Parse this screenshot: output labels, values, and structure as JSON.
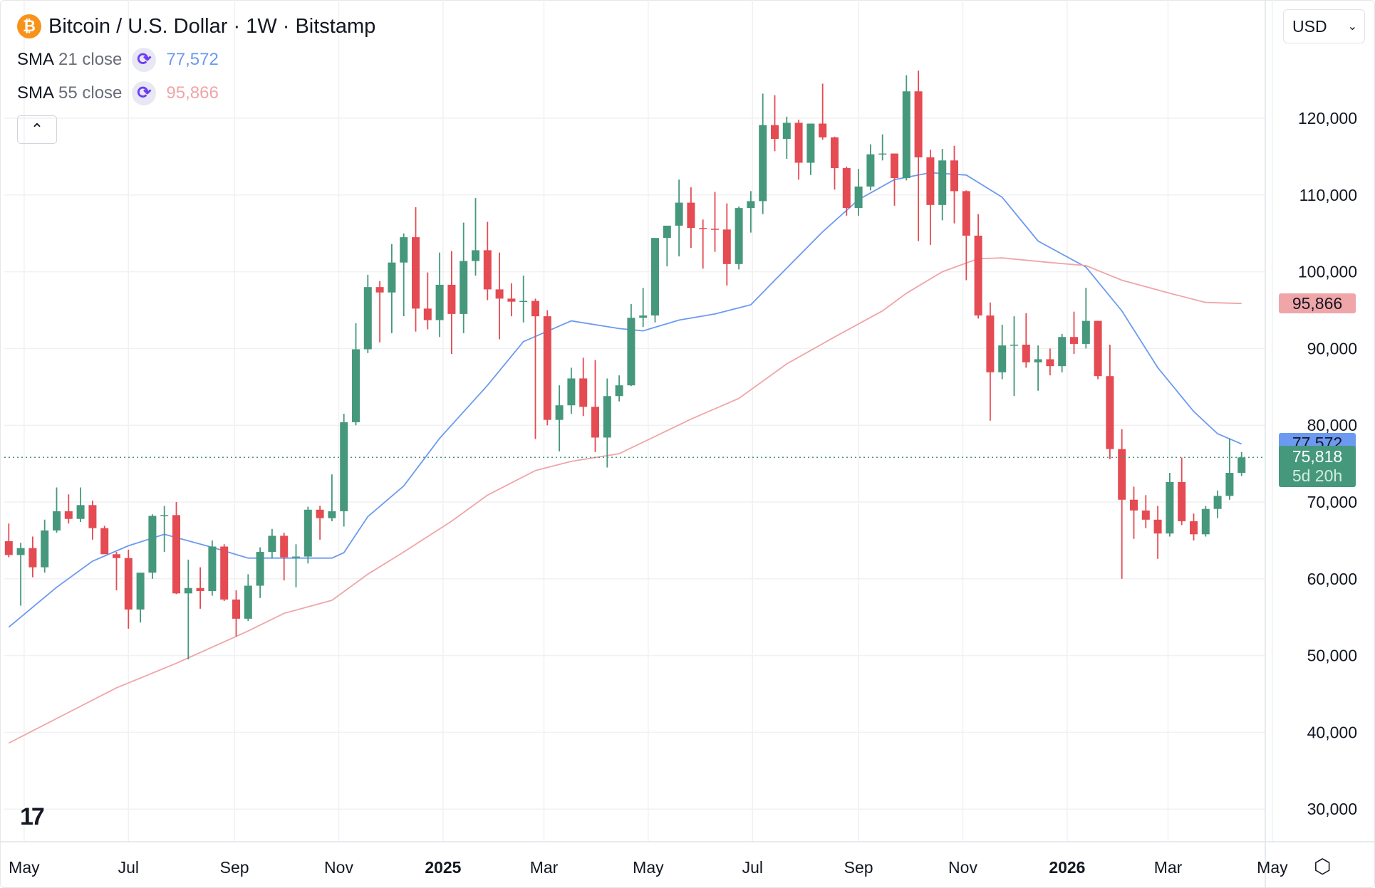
{
  "header": {
    "title": "Bitcoin / U.S. Dollar · 1W · Bitstamp",
    "coin_icon": "bitcoin-icon",
    "currency": "USD"
  },
  "indicators": [
    {
      "name": "SMA",
      "params": "21 close",
      "value": "77,572",
      "color": "#6b9af0"
    },
    {
      "name": "SMA",
      "params": "55 close",
      "value": "95,866",
      "color": "#f0a5a8"
    }
  ],
  "price_tags": {
    "sma21": "77,572",
    "sma55": "95,866",
    "last": "75,818",
    "countdown": "5d 20h"
  },
  "colors": {
    "up": "#46987c",
    "down": "#e44b52",
    "sma21": "#6b9af0",
    "sma55": "#f0a5a8",
    "grid": "#f0f1f3"
  },
  "chart_data": {
    "type": "candlestick",
    "interval": "1W",
    "ylim": [
      25000,
      128000
    ],
    "yticks": [
      30000,
      40000,
      50000,
      60000,
      70000,
      80000,
      90000,
      100000,
      110000,
      120000
    ],
    "ytick_labels": [
      "30,000",
      "40,000",
      "50,000",
      "60,000",
      "70,000",
      "80,000",
      "90,000",
      "100,000",
      "110,000",
      "120,000"
    ],
    "xticks": [
      {
        "date": "2024-05-01",
        "label": "May"
      },
      {
        "date": "2024-07-01",
        "label": "Jul"
      },
      {
        "date": "2024-09-01",
        "label": "Sep"
      },
      {
        "date": "2024-11-01",
        "label": "Nov"
      },
      {
        "date": "2025-01-01",
        "label": "2025",
        "bold": true
      },
      {
        "date": "2025-03-01",
        "label": "Mar"
      },
      {
        "date": "2025-05-01",
        "label": "May"
      },
      {
        "date": "2025-07-01",
        "label": "Jul"
      },
      {
        "date": "2025-09-01",
        "label": "Sep"
      },
      {
        "date": "2025-11-01",
        "label": "Nov"
      },
      {
        "date": "2026-01-01",
        "label": "2026",
        "bold": true
      },
      {
        "date": "2026-03-01",
        "label": "Mar"
      },
      {
        "date": "2026-05-01",
        "label": "May"
      }
    ],
    "start": "2024-04-22",
    "last_price": 75818,
    "ohlc": [
      [
        64.9,
        67.2,
        62.8,
        63.1
      ],
      [
        63.1,
        64.7,
        56.5,
        64.0
      ],
      [
        64.0,
        65.5,
        60.2,
        61.5
      ],
      [
        61.5,
        67.7,
        60.8,
        66.3
      ],
      [
        66.3,
        71.9,
        66.0,
        68.8
      ],
      [
        68.8,
        71.0,
        67.2,
        67.8
      ],
      [
        67.8,
        71.9,
        67.4,
        69.6
      ],
      [
        69.6,
        70.2,
        65.1,
        66.6
      ],
      [
        66.6,
        66.9,
        63.4,
        63.2
      ],
      [
        63.2,
        63.5,
        58.5,
        62.7
      ],
      [
        62.7,
        63.8,
        53.5,
        56.0
      ],
      [
        56.0,
        60.0,
        54.3,
        60.8
      ],
      [
        60.8,
        68.4,
        60.0,
        68.2
      ],
      [
        68.2,
        69.5,
        63.5,
        68.3
      ],
      [
        68.3,
        70.0,
        58.0,
        58.1
      ],
      [
        58.1,
        62.5,
        49.5,
        58.8
      ],
      [
        58.8,
        61.5,
        56.1,
        58.4
      ],
      [
        58.4,
        65.0,
        57.8,
        64.2
      ],
      [
        64.2,
        64.5,
        57.1,
        57.3
      ],
      [
        57.3,
        58.5,
        52.5,
        54.8
      ],
      [
        54.8,
        60.6,
        54.5,
        59.1
      ],
      [
        59.1,
        64.1,
        57.5,
        63.5
      ],
      [
        63.5,
        66.5,
        62.7,
        65.6
      ],
      [
        65.6,
        66.0,
        59.8,
        62.8
      ],
      [
        62.8,
        64.5,
        58.9,
        62.9
      ],
      [
        62.9,
        69.4,
        62.0,
        69.0
      ],
      [
        69.0,
        69.5,
        65.1,
        67.9
      ],
      [
        67.9,
        73.6,
        67.5,
        68.8
      ],
      [
        68.8,
        81.5,
        66.8,
        80.4
      ],
      [
        80.4,
        93.3,
        80.0,
        89.9
      ],
      [
        89.9,
        99.6,
        89.4,
        98.0
      ],
      [
        98.0,
        98.8,
        90.8,
        97.3
      ],
      [
        97.3,
        103.6,
        92.0,
        101.2
      ],
      [
        101.2,
        105.0,
        94.2,
        104.5
      ],
      [
        104.5,
        108.4,
        92.2,
        95.2
      ],
      [
        95.2,
        99.9,
        92.5,
        93.7
      ],
      [
        93.7,
        102.5,
        91.5,
        98.3
      ],
      [
        98.3,
        102.7,
        89.3,
        94.5
      ],
      [
        94.5,
        106.4,
        92.0,
        101.4
      ],
      [
        101.4,
        109.6,
        99.5,
        102.8
      ],
      [
        102.8,
        106.5,
        96.3,
        97.7
      ],
      [
        97.7,
        102.5,
        91.2,
        96.5
      ],
      [
        96.5,
        98.5,
        94.2,
        96.1
      ],
      [
        96.1,
        99.5,
        93.4,
        96.2
      ],
      [
        96.2,
        96.5,
        78.2,
        94.2
      ],
      [
        94.2,
        95.0,
        80.0,
        80.7
      ],
      [
        80.7,
        85.2,
        76.6,
        82.6
      ],
      [
        82.6,
        87.5,
        81.5,
        86.1
      ],
      [
        86.1,
        88.8,
        81.2,
        82.4
      ],
      [
        82.4,
        88.5,
        76.5,
        78.4
      ],
      [
        78.4,
        86.1,
        74.5,
        83.8
      ],
      [
        83.8,
        86.5,
        83.1,
        85.2
      ],
      [
        85.2,
        95.8,
        85.1,
        94.0
      ],
      [
        94.0,
        97.9,
        92.8,
        94.3
      ],
      [
        94.3,
        104.3,
        93.4,
        104.4
      ],
      [
        104.4,
        105.8,
        100.7,
        106.0
      ],
      [
        106.0,
        112.0,
        102.0,
        109.0
      ],
      [
        109.0,
        111.0,
        103.1,
        105.7
      ],
      [
        105.7,
        106.8,
        100.4,
        105.6
      ],
      [
        105.6,
        110.4,
        102.6,
        105.5
      ],
      [
        105.5,
        108.9,
        98.2,
        101.0
      ],
      [
        101.0,
        108.5,
        100.3,
        108.3
      ],
      [
        108.3,
        110.5,
        105.1,
        109.2
      ],
      [
        109.2,
        123.2,
        107.5,
        119.1
      ],
      [
        119.1,
        123.0,
        115.7,
        117.3
      ],
      [
        117.3,
        120.2,
        114.7,
        119.4
      ],
      [
        119.4,
        119.8,
        112.0,
        114.2
      ],
      [
        114.2,
        119.3,
        112.6,
        119.3
      ],
      [
        119.3,
        124.5,
        117.2,
        117.5
      ],
      [
        117.5,
        117.6,
        110.7,
        113.5
      ],
      [
        113.5,
        113.7,
        107.3,
        108.3
      ],
      [
        108.3,
        113.4,
        107.3,
        111.1
      ],
      [
        111.1,
        116.6,
        110.6,
        115.3
      ],
      [
        115.3,
        117.9,
        114.5,
        115.4
      ],
      [
        115.4,
        115.4,
        108.6,
        112.2
      ],
      [
        112.2,
        125.6,
        111.9,
        123.5
      ],
      [
        123.5,
        126.2,
        104.0,
        114.9
      ],
      [
        114.9,
        115.9,
        103.5,
        108.7
      ],
      [
        108.7,
        116.0,
        106.7,
        114.5
      ],
      [
        114.5,
        116.4,
        106.3,
        110.5
      ],
      [
        110.5,
        110.6,
        98.9,
        104.7
      ],
      [
        104.7,
        107.5,
        93.9,
        94.3
      ],
      [
        94.3,
        96.0,
        80.6,
        86.9
      ],
      [
        86.9,
        93.1,
        86.0,
        90.4
      ],
      [
        90.4,
        94.2,
        83.8,
        90.5
      ],
      [
        90.5,
        94.6,
        87.5,
        88.2
      ],
      [
        88.2,
        90.4,
        84.5,
        88.6
      ],
      [
        88.6,
        90.0,
        86.5,
        87.7
      ],
      [
        87.7,
        91.9,
        86.9,
        91.5
      ],
      [
        91.5,
        94.8,
        89.3,
        90.6
      ],
      [
        90.6,
        97.9,
        90.0,
        93.6
      ],
      [
        93.6,
        93.6,
        86.0,
        86.4
      ],
      [
        86.4,
        90.5,
        75.6,
        76.9
      ],
      [
        76.9,
        79.5,
        60.0,
        70.3
      ],
      [
        70.3,
        72.0,
        65.2,
        68.9
      ],
      [
        68.9,
        70.9,
        66.6,
        67.7
      ],
      [
        67.7,
        69.5,
        62.6,
        65.9
      ],
      [
        65.9,
        73.8,
        65.5,
        72.6
      ],
      [
        72.6,
        75.8,
        67.0,
        67.5
      ],
      [
        67.5,
        68.5,
        65.0,
        65.8
      ],
      [
        65.8,
        69.5,
        65.5,
        69.1
      ],
      [
        69.1,
        71.5,
        67.9,
        70.8
      ],
      [
        70.8,
        78.3,
        70.3,
        73.8
      ],
      [
        73.8,
        76.5,
        73.4,
        75.818
      ]
    ],
    "ohlc_units": "thousand USD",
    "series": [
      {
        "name": "SMA 21 close",
        "points": [
          [
            "2024-04-22",
            53.7
          ],
          [
            "2024-05-20",
            58.9
          ],
          [
            "2024-06-10",
            62.3
          ],
          [
            "2024-07-01",
            64.3
          ],
          [
            "2024-07-22",
            65.8
          ],
          [
            "2024-08-19",
            64.1
          ],
          [
            "2024-09-09",
            62.7
          ],
          [
            "2024-09-30",
            62.7
          ],
          [
            "2024-10-28",
            62.7
          ],
          [
            "2024-11-04",
            63.4
          ],
          [
            "2024-11-18",
            68.1
          ],
          [
            "2024-12-09",
            72.1
          ],
          [
            "2024-12-30",
            78.3
          ],
          [
            "2025-01-27",
            85.2
          ],
          [
            "2025-02-17",
            90.9
          ],
          [
            "2025-03-17",
            93.6
          ],
          [
            "2025-04-14",
            92.6
          ],
          [
            "2025-04-28",
            92.3
          ],
          [
            "2025-05-19",
            93.7
          ],
          [
            "2025-06-09",
            94.5
          ],
          [
            "2025-06-30",
            95.7
          ],
          [
            "2025-07-14",
            98.9
          ],
          [
            "2025-08-11",
            105.2
          ],
          [
            "2025-09-01",
            109.4
          ],
          [
            "2025-09-22",
            112.0
          ],
          [
            "2025-10-13",
            112.9
          ],
          [
            "2025-11-03",
            112.6
          ],
          [
            "2025-11-24",
            109.7
          ],
          [
            "2025-12-15",
            104.0
          ],
          [
            "2026-01-12",
            100.6
          ],
          [
            "2026-02-02",
            94.9
          ],
          [
            "2026-02-23",
            87.5
          ],
          [
            "2026-03-16",
            81.8
          ],
          [
            "2026-03-30",
            78.9
          ],
          [
            "2026-04-13",
            77.572
          ]
        ]
      },
      {
        "name": "SMA 55 close",
        "points": [
          [
            "2024-04-22",
            38.6
          ],
          [
            "2024-05-20",
            41.8
          ],
          [
            "2024-06-24",
            45.8
          ],
          [
            "2024-07-29",
            49.0
          ],
          [
            "2024-09-09",
            53.2
          ],
          [
            "2024-09-30",
            55.5
          ],
          [
            "2024-10-28",
            57.2
          ],
          [
            "2024-11-18",
            60.6
          ],
          [
            "2024-12-09",
            63.5
          ],
          [
            "2025-01-06",
            67.5
          ],
          [
            "2025-01-27",
            70.9
          ],
          [
            "2025-02-24",
            74.1
          ],
          [
            "2025-03-17",
            75.3
          ],
          [
            "2025-04-14",
            76.3
          ],
          [
            "2025-04-28",
            77.8
          ],
          [
            "2025-05-26",
            80.8
          ],
          [
            "2025-06-23",
            83.5
          ],
          [
            "2025-07-21",
            88.0
          ],
          [
            "2025-08-18",
            91.5
          ],
          [
            "2025-09-15",
            94.9
          ],
          [
            "2025-09-29",
            97.2
          ],
          [
            "2025-10-20",
            100.0
          ],
          [
            "2025-11-10",
            101.7
          ],
          [
            "2025-11-24",
            101.8
          ],
          [
            "2025-12-22",
            101.2
          ],
          [
            "2026-01-12",
            100.8
          ],
          [
            "2026-02-02",
            98.9
          ],
          [
            "2026-03-02",
            97.2
          ],
          [
            "2026-03-23",
            96.0
          ],
          [
            "2026-04-13",
            95.866
          ]
        ]
      }
    ]
  }
}
